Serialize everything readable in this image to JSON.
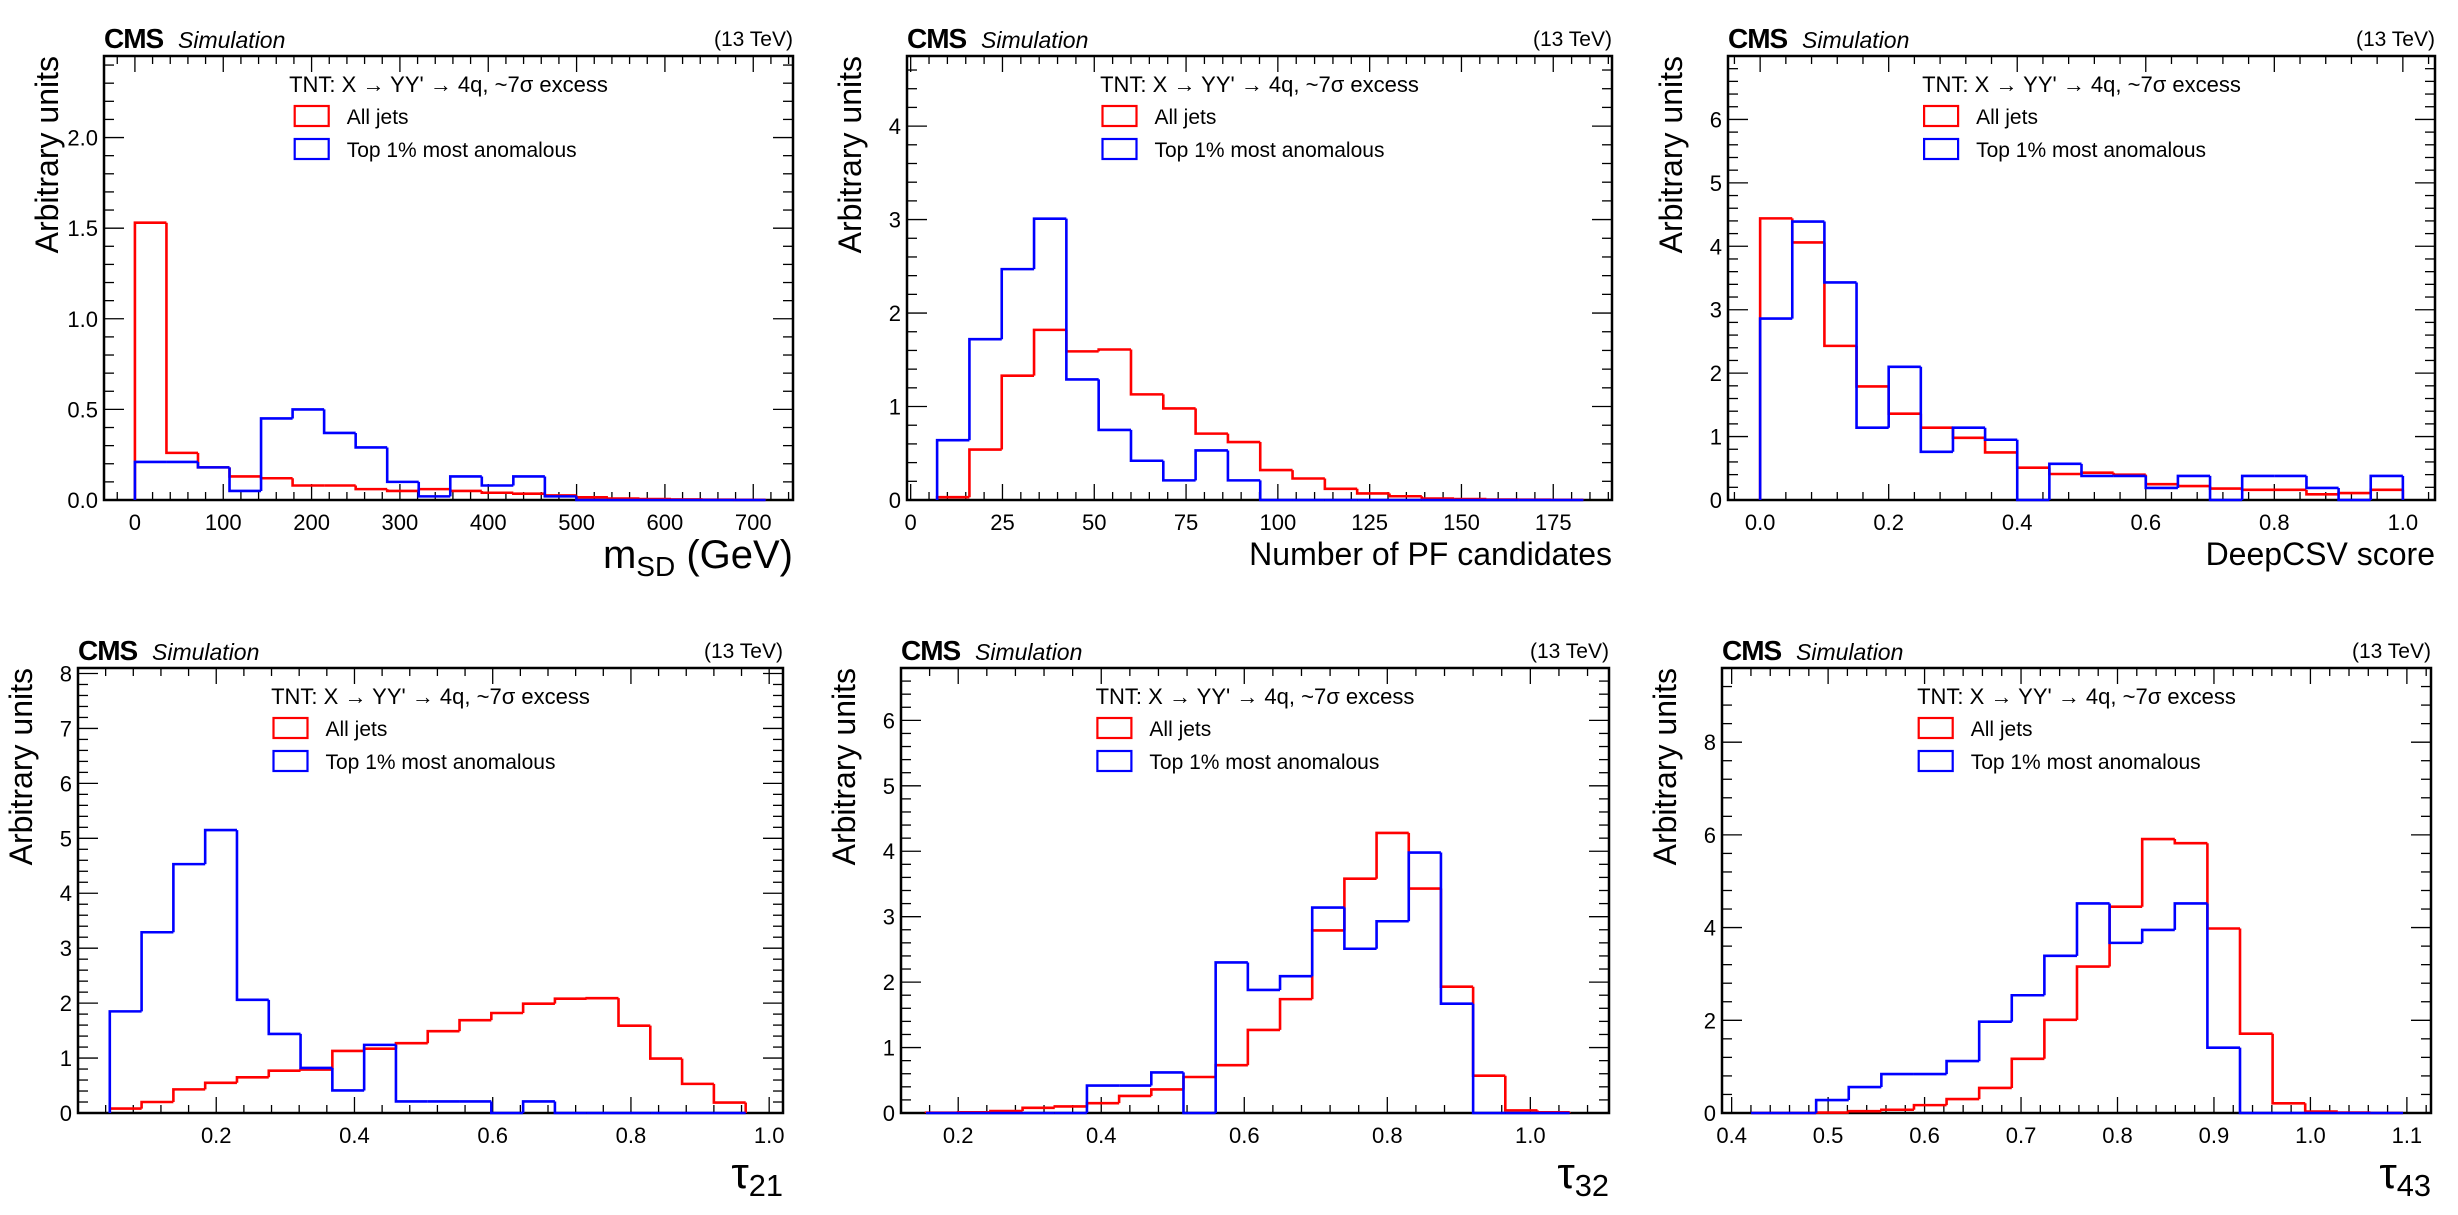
{
  "chart_data": [
    {
      "type": "histogram",
      "id": "msd",
      "cms_label": "CMS",
      "sim_label": "Simulation",
      "energy_label": "(13 TeV)",
      "legend_title": "TNT: X → YY' → 4q, ~7σ excess",
      "xlabel": "m",
      "xlabel_sub": "SD",
      "xlabel_suffix": " (GeV)",
      "ylabel": "Arbitrary units",
      "xlim": [
        -35,
        745
      ],
      "ylim": [
        0,
        2.45
      ],
      "xticks": [
        0,
        100,
        200,
        300,
        400,
        500,
        600,
        700
      ],
      "xtick_labels": [
        "0",
        "100",
        "200",
        "300",
        "400",
        "500",
        "600",
        "700"
      ],
      "yticks": [
        0,
        0.5,
        1.0,
        1.5,
        2.0
      ],
      "ytick_labels": [
        "0.0",
        "0.5",
        "1.0",
        "1.5",
        "2.0"
      ],
      "bin_edges": [
        0,
        35.7,
        71.4,
        107.1,
        142.8,
        178.5,
        214.2,
        249.9,
        285.6,
        321.3,
        357,
        392.7,
        428.4,
        464.1,
        499.8,
        535.5,
        571.2,
        606.9,
        642.6,
        678.3,
        714
      ],
      "series": [
        {
          "name": "All jets",
          "color": "#ff0000",
          "values": [
            1.53,
            0.26,
            0.18,
            0.13,
            0.12,
            0.08,
            0.08,
            0.06,
            0.05,
            0.06,
            0.05,
            0.04,
            0.035,
            0.025,
            0.015,
            0.008,
            0.005,
            0.003,
            0.002,
            0.001
          ]
        },
        {
          "name": "Top 1% most anomalous",
          "color": "#0000ff",
          "values": [
            0.21,
            0.21,
            0.18,
            0.05,
            0.45,
            0.5,
            0.37,
            0.29,
            0.1,
            0.02,
            0.13,
            0.08,
            0.13,
            0.02,
            0.0,
            0.0,
            0.0,
            0.0,
            0.0,
            0.0
          ]
        }
      ]
    },
    {
      "type": "histogram",
      "id": "npf",
      "cms_label": "CMS",
      "sim_label": "Simulation",
      "energy_label": "(13 TeV)",
      "legend_title": "TNT: X → YY' → 4q, ~7σ excess",
      "xlabel": "Number of PF candidates",
      "xlabel_sub": "",
      "xlabel_suffix": "",
      "ylabel": "Arbitrary units",
      "xlim": [
        -1,
        191
      ],
      "ylim": [
        0,
        4.75
      ],
      "xticks": [
        0,
        25,
        50,
        75,
        100,
        125,
        150,
        175
      ],
      "xtick_labels": [
        "0",
        "25",
        "50",
        "75",
        "100",
        "125",
        "150",
        "175"
      ],
      "yticks": [
        0,
        1,
        2,
        3,
        4
      ],
      "ytick_labels": [
        "0",
        "1",
        "2",
        "3",
        "4"
      ],
      "bin_edges": [
        7.2,
        16,
        24.8,
        33.6,
        42.4,
        51.2,
        60,
        68.8,
        77.6,
        86.4,
        95.2,
        104,
        112.8,
        121.6,
        130.4,
        139.2,
        148,
        156.8,
        165.6,
        174.4,
        183.2
      ],
      "series": [
        {
          "name": "All jets",
          "color": "#ff0000",
          "values": [
            0.03,
            0.54,
            1.33,
            1.82,
            1.59,
            1.61,
            1.13,
            0.98,
            0.71,
            0.62,
            0.32,
            0.23,
            0.12,
            0.07,
            0.04,
            0.015,
            0.01,
            0.005,
            0.003,
            0.002
          ]
        },
        {
          "name": "Top 1% most anomalous",
          "color": "#0000ff",
          "values": [
            0.64,
            1.72,
            2.47,
            3.01,
            1.29,
            0.75,
            0.42,
            0.21,
            0.53,
            0.21,
            0.0,
            0.0,
            0.0,
            0.0,
            0.0,
            0.0,
            0.0,
            0.0,
            0.0,
            0.0
          ]
        }
      ]
    },
    {
      "type": "histogram",
      "id": "deepcsv",
      "cms_label": "CMS",
      "sim_label": "Simulation",
      "energy_label": "(13 TeV)",
      "legend_title": "TNT: X → YY' → 4q, ~7σ excess",
      "xlabel": "DeepCSV score",
      "xlabel_sub": "",
      "xlabel_suffix": "",
      "ylabel": "Arbitrary units",
      "xlim": [
        -0.05,
        1.05
      ],
      "ylim": [
        0,
        7.0
      ],
      "xticks": [
        0.0,
        0.2,
        0.4,
        0.6,
        0.8,
        1.0
      ],
      "xtick_labels": [
        "0.0",
        "0.2",
        "0.4",
        "0.6",
        "0.8",
        "1.0"
      ],
      "yticks": [
        0,
        1,
        2,
        3,
        4,
        5,
        6
      ],
      "ytick_labels": [
        "0",
        "1",
        "2",
        "3",
        "4",
        "5",
        "6"
      ],
      "bin_edges": [
        0,
        0.05,
        0.1,
        0.15,
        0.2,
        0.25,
        0.3,
        0.35,
        0.4,
        0.45,
        0.5,
        0.55,
        0.6,
        0.65,
        0.7,
        0.75,
        0.8,
        0.85,
        0.9,
        0.95,
        1.0
      ],
      "series": [
        {
          "name": "All jets",
          "color": "#ff0000",
          "values": [
            4.44,
            4.06,
            2.43,
            1.79,
            1.36,
            1.14,
            0.98,
            0.75,
            0.51,
            0.41,
            0.43,
            0.4,
            0.25,
            0.22,
            0.18,
            0.16,
            0.16,
            0.09,
            0.11,
            0.16
          ]
        },
        {
          "name": "Top 1% most anomalous",
          "color": "#0000ff",
          "values": [
            2.86,
            4.39,
            3.43,
            1.14,
            2.1,
            0.76,
            1.14,
            0.95,
            0.0,
            0.57,
            0.38,
            0.38,
            0.19,
            0.38,
            0.0,
            0.38,
            0.38,
            0.19,
            0.0,
            0.38
          ]
        }
      ]
    },
    {
      "type": "histogram",
      "id": "tau21",
      "cms_label": "CMS",
      "sim_label": "Simulation",
      "energy_label": "(13 TeV)",
      "legend_title": "TNT: X → YY' → 4q, ~7σ excess",
      "xlabel": "τ",
      "xlabel_sub": "21",
      "xlabel_suffix": "",
      "ylabel": "Arbitrary units",
      "xlim": [
        0.0,
        1.02
      ],
      "ylim": [
        0,
        8.1
      ],
      "xticks": [
        0.2,
        0.4,
        0.6,
        0.8,
        1.0
      ],
      "xtick_labels": [
        "0.2",
        "0.4",
        "0.6",
        "0.8",
        "1.0"
      ],
      "yticks": [
        0,
        1,
        2,
        3,
        4,
        5,
        6,
        7,
        8
      ],
      "ytick_labels": [
        "0",
        "1",
        "2",
        "3",
        "4",
        "5",
        "6",
        "7",
        "8"
      ],
      "bin_edges": [
        0.046,
        0.092,
        0.138,
        0.184,
        0.23,
        0.276,
        0.322,
        0.368,
        0.414,
        0.46,
        0.506,
        0.552,
        0.598,
        0.644,
        0.69,
        0.736,
        0.782,
        0.828,
        0.874,
        0.92,
        0.966
      ],
      "series": [
        {
          "name": "All jets",
          "color": "#ff0000",
          "values": [
            0.08,
            0.2,
            0.43,
            0.55,
            0.65,
            0.77,
            0.79,
            1.13,
            1.17,
            1.27,
            1.49,
            1.69,
            1.82,
            1.99,
            2.08,
            2.09,
            1.59,
            0.99,
            0.53,
            0.19
          ]
        },
        {
          "name": "Top 1% most anomalous",
          "color": "#0000ff",
          "values": [
            1.85,
            3.29,
            4.53,
            5.15,
            2.06,
            1.44,
            0.82,
            0.41,
            1.24,
            0.21,
            0.21,
            0.21,
            0.0,
            0.21,
            0.0,
            0.0,
            0.0,
            0.0,
            0.0,
            0.0
          ]
        }
      ]
    },
    {
      "type": "histogram",
      "id": "tau32",
      "cms_label": "CMS",
      "sim_label": "Simulation",
      "energy_label": "(13 TeV)",
      "legend_title": "TNT: X → YY' → 4q, ~7σ excess",
      "xlabel": "τ",
      "xlabel_sub": "32",
      "xlabel_suffix": "",
      "ylabel": "Arbitrary units",
      "xlim": [
        0.12,
        1.11
      ],
      "ylim": [
        0,
        6.8
      ],
      "xticks": [
        0.2,
        0.4,
        0.6,
        0.8,
        1.0
      ],
      "xtick_labels": [
        "0.2",
        "0.4",
        "0.6",
        "0.8",
        "1.0"
      ],
      "yticks": [
        0,
        1,
        2,
        3,
        4,
        5,
        6
      ],
      "ytick_labels": [
        "0",
        "1",
        "2",
        "3",
        "4",
        "5",
        "6"
      ],
      "bin_edges": [
        0.155,
        0.2,
        0.245,
        0.29,
        0.335,
        0.38,
        0.425,
        0.47,
        0.515,
        0.56,
        0.605,
        0.65,
        0.695,
        0.74,
        0.785,
        0.83,
        0.875,
        0.92,
        0.965,
        1.01,
        1.055
      ],
      "series": [
        {
          "name": "All jets",
          "color": "#ff0000",
          "values": [
            0.005,
            0.01,
            0.03,
            0.08,
            0.1,
            0.15,
            0.26,
            0.36,
            0.55,
            0.73,
            1.27,
            1.74,
            2.79,
            3.58,
            4.28,
            3.43,
            1.93,
            0.57,
            0.04,
            0.01
          ]
        },
        {
          "name": "Top 1% most anomalous",
          "color": "#0000ff",
          "values": [
            0.0,
            0.0,
            0.0,
            0.0,
            0.0,
            0.42,
            0.42,
            0.62,
            0.0,
            2.3,
            1.88,
            2.09,
            3.14,
            2.51,
            2.93,
            3.98,
            1.67,
            0.0,
            0.0,
            0.0
          ]
        }
      ]
    },
    {
      "type": "histogram",
      "id": "tau43",
      "cms_label": "CMS",
      "sim_label": "Simulation",
      "energy_label": "(13 TeV)",
      "legend_title": "TNT: X → YY' → 4q, ~7σ excess",
      "xlabel": "τ",
      "xlabel_sub": "43",
      "xlabel_suffix": "",
      "ylabel": "Arbitrary units",
      "xlim": [
        0.39,
        1.125
      ],
      "ylim": [
        0,
        9.6
      ],
      "xticks": [
        0.4,
        0.5,
        0.6,
        0.7,
        0.8,
        0.9,
        1.0,
        1.1
      ],
      "xtick_labels": [
        "0.4",
        "0.5",
        "0.6",
        "0.7",
        "0.8",
        "0.9",
        "1.0",
        "1.1"
      ],
      "yticks": [
        0,
        2,
        4,
        6,
        8
      ],
      "ytick_labels": [
        "0",
        "2",
        "4",
        "6",
        "8"
      ],
      "bin_edges": [
        0.42,
        0.4538,
        0.4876,
        0.5214,
        0.5552,
        0.589,
        0.6228,
        0.6566,
        0.6904,
        0.7242,
        0.758,
        0.7918,
        0.8256,
        0.8594,
        0.8932,
        0.927,
        0.9608,
        0.9946,
        1.0284,
        1.0622,
        1.096
      ],
      "series": [
        {
          "name": "All jets",
          "color": "#ff0000",
          "values": [
            0.0,
            0.0,
            0.01,
            0.04,
            0.07,
            0.17,
            0.3,
            0.54,
            1.17,
            2.01,
            3.16,
            4.45,
            5.91,
            5.82,
            3.98,
            1.71,
            0.21,
            0.03,
            0.01,
            0.0
          ]
        },
        {
          "name": "Top 1% most anomalous",
          "color": "#0000ff",
          "values": [
            0.0,
            0.0,
            0.28,
            0.56,
            0.84,
            0.84,
            1.12,
            1.97,
            2.54,
            3.39,
            4.52,
            3.67,
            3.95,
            4.52,
            1.41,
            0.0,
            0.0,
            0.0,
            0.0,
            0.0
          ]
        }
      ]
    }
  ]
}
